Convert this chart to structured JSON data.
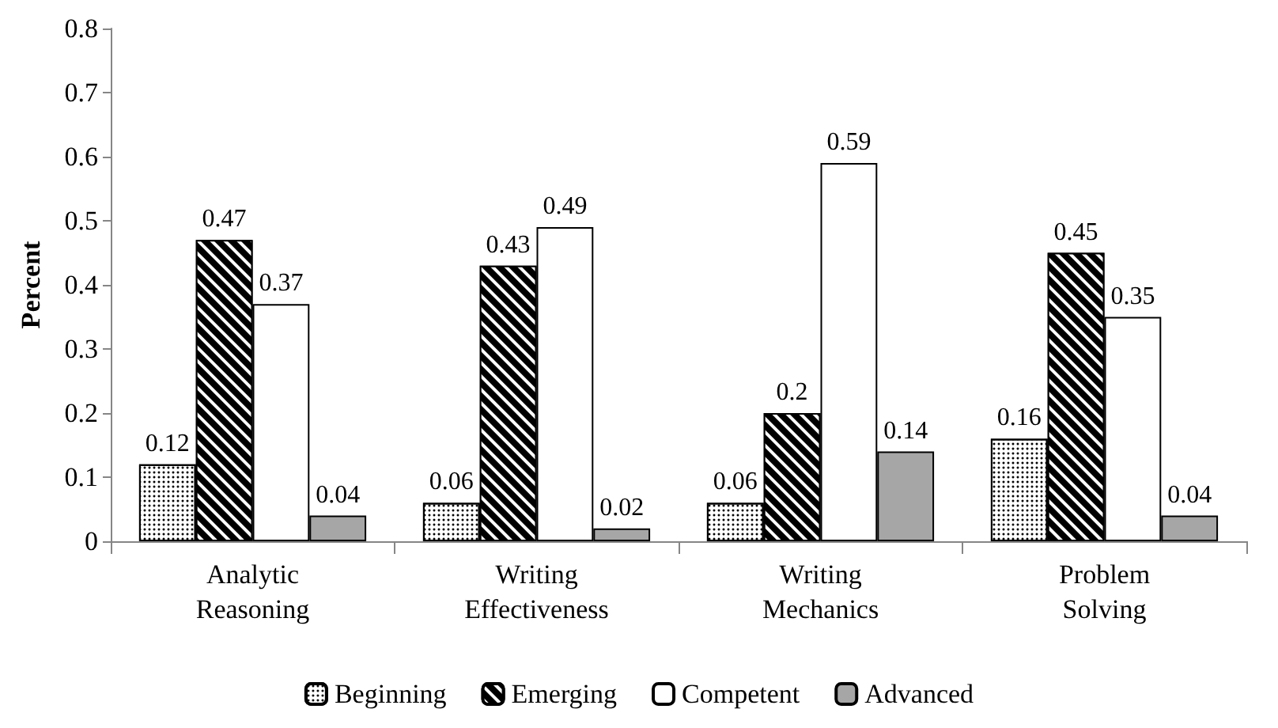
{
  "chart_data": {
    "type": "bar",
    "ylabel": "Percent",
    "categories": [
      "Analytic Reasoning",
      "Writing Effectiveness",
      "Writing Mechanics",
      "Problem Solving"
    ],
    "series": [
      {
        "name": "Beginning",
        "color": "#ffffff",
        "values": [
          0.12,
          0.06,
          0.06,
          0.16
        ]
      },
      {
        "name": "Emerging",
        "color": "#000000",
        "values": [
          0.47,
          0.43,
          0.2,
          0.45
        ]
      },
      {
        "name": "Competent",
        "color": "#ffffff",
        "values": [
          0.37,
          0.49,
          0.59,
          0.35
        ]
      },
      {
        "name": "Advanced",
        "color": "#a6a6a6",
        "values": [
          0.04,
          0.02,
          0.14,
          0.04
        ]
      }
    ],
    "ylim": [
      0,
      0.8
    ],
    "yticks": [
      0,
      0.1,
      0.2,
      0.3,
      0.4,
      0.5,
      0.6,
      0.7,
      0.8
    ],
    "grid": false,
    "legend": "bottom",
    "data_labels": true
  }
}
